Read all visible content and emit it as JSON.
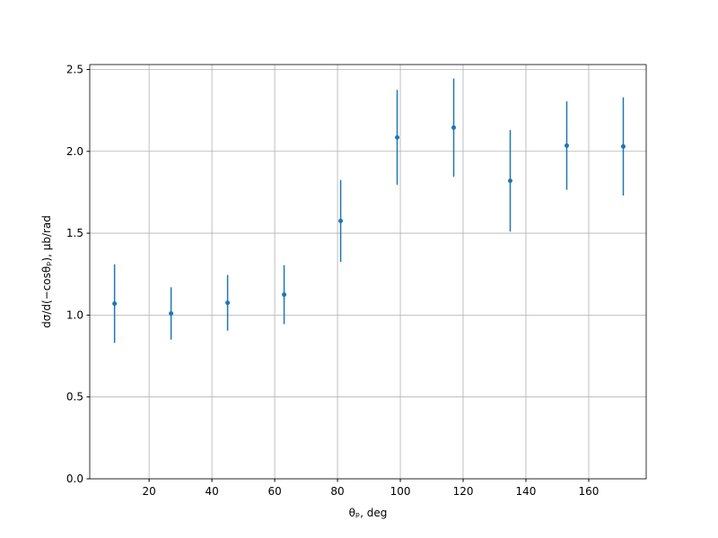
{
  "chart_data": {
    "type": "errorbar",
    "x_label": "θₚ, deg",
    "y_label": "dσ/d(−cosθₚ), μb/rad",
    "x": [
      9,
      27,
      45,
      63,
      81,
      99,
      117,
      135,
      153,
      171
    ],
    "series": [
      {
        "color": "#1f77b4",
        "values": [
          1.07,
          1.01,
          1.075,
          1.125,
          1.575,
          2.085,
          2.145,
          1.82,
          2.035,
          2.03
        ],
        "errors": [
          0.24,
          0.16,
          0.17,
          0.18,
          0.25,
          0.29,
          0.3,
          0.31,
          0.27,
          0.3
        ]
      }
    ],
    "xlim": [
      1.1,
      178.3
    ],
    "ylim": [
      0,
      2.53
    ],
    "xticks": [
      20,
      40,
      60,
      80,
      100,
      120,
      140,
      160
    ],
    "yticks": [
      {
        "value": 0,
        "label": "0.0"
      },
      {
        "value": 0.5,
        "label": "0.5"
      },
      {
        "value": 1,
        "label": "1.0"
      },
      {
        "value": 1.5,
        "label": "1.5"
      },
      {
        "value": 2,
        "label": "2.0"
      },
      {
        "value": 2.5,
        "label": "2.5"
      }
    ],
    "grid": true
  }
}
